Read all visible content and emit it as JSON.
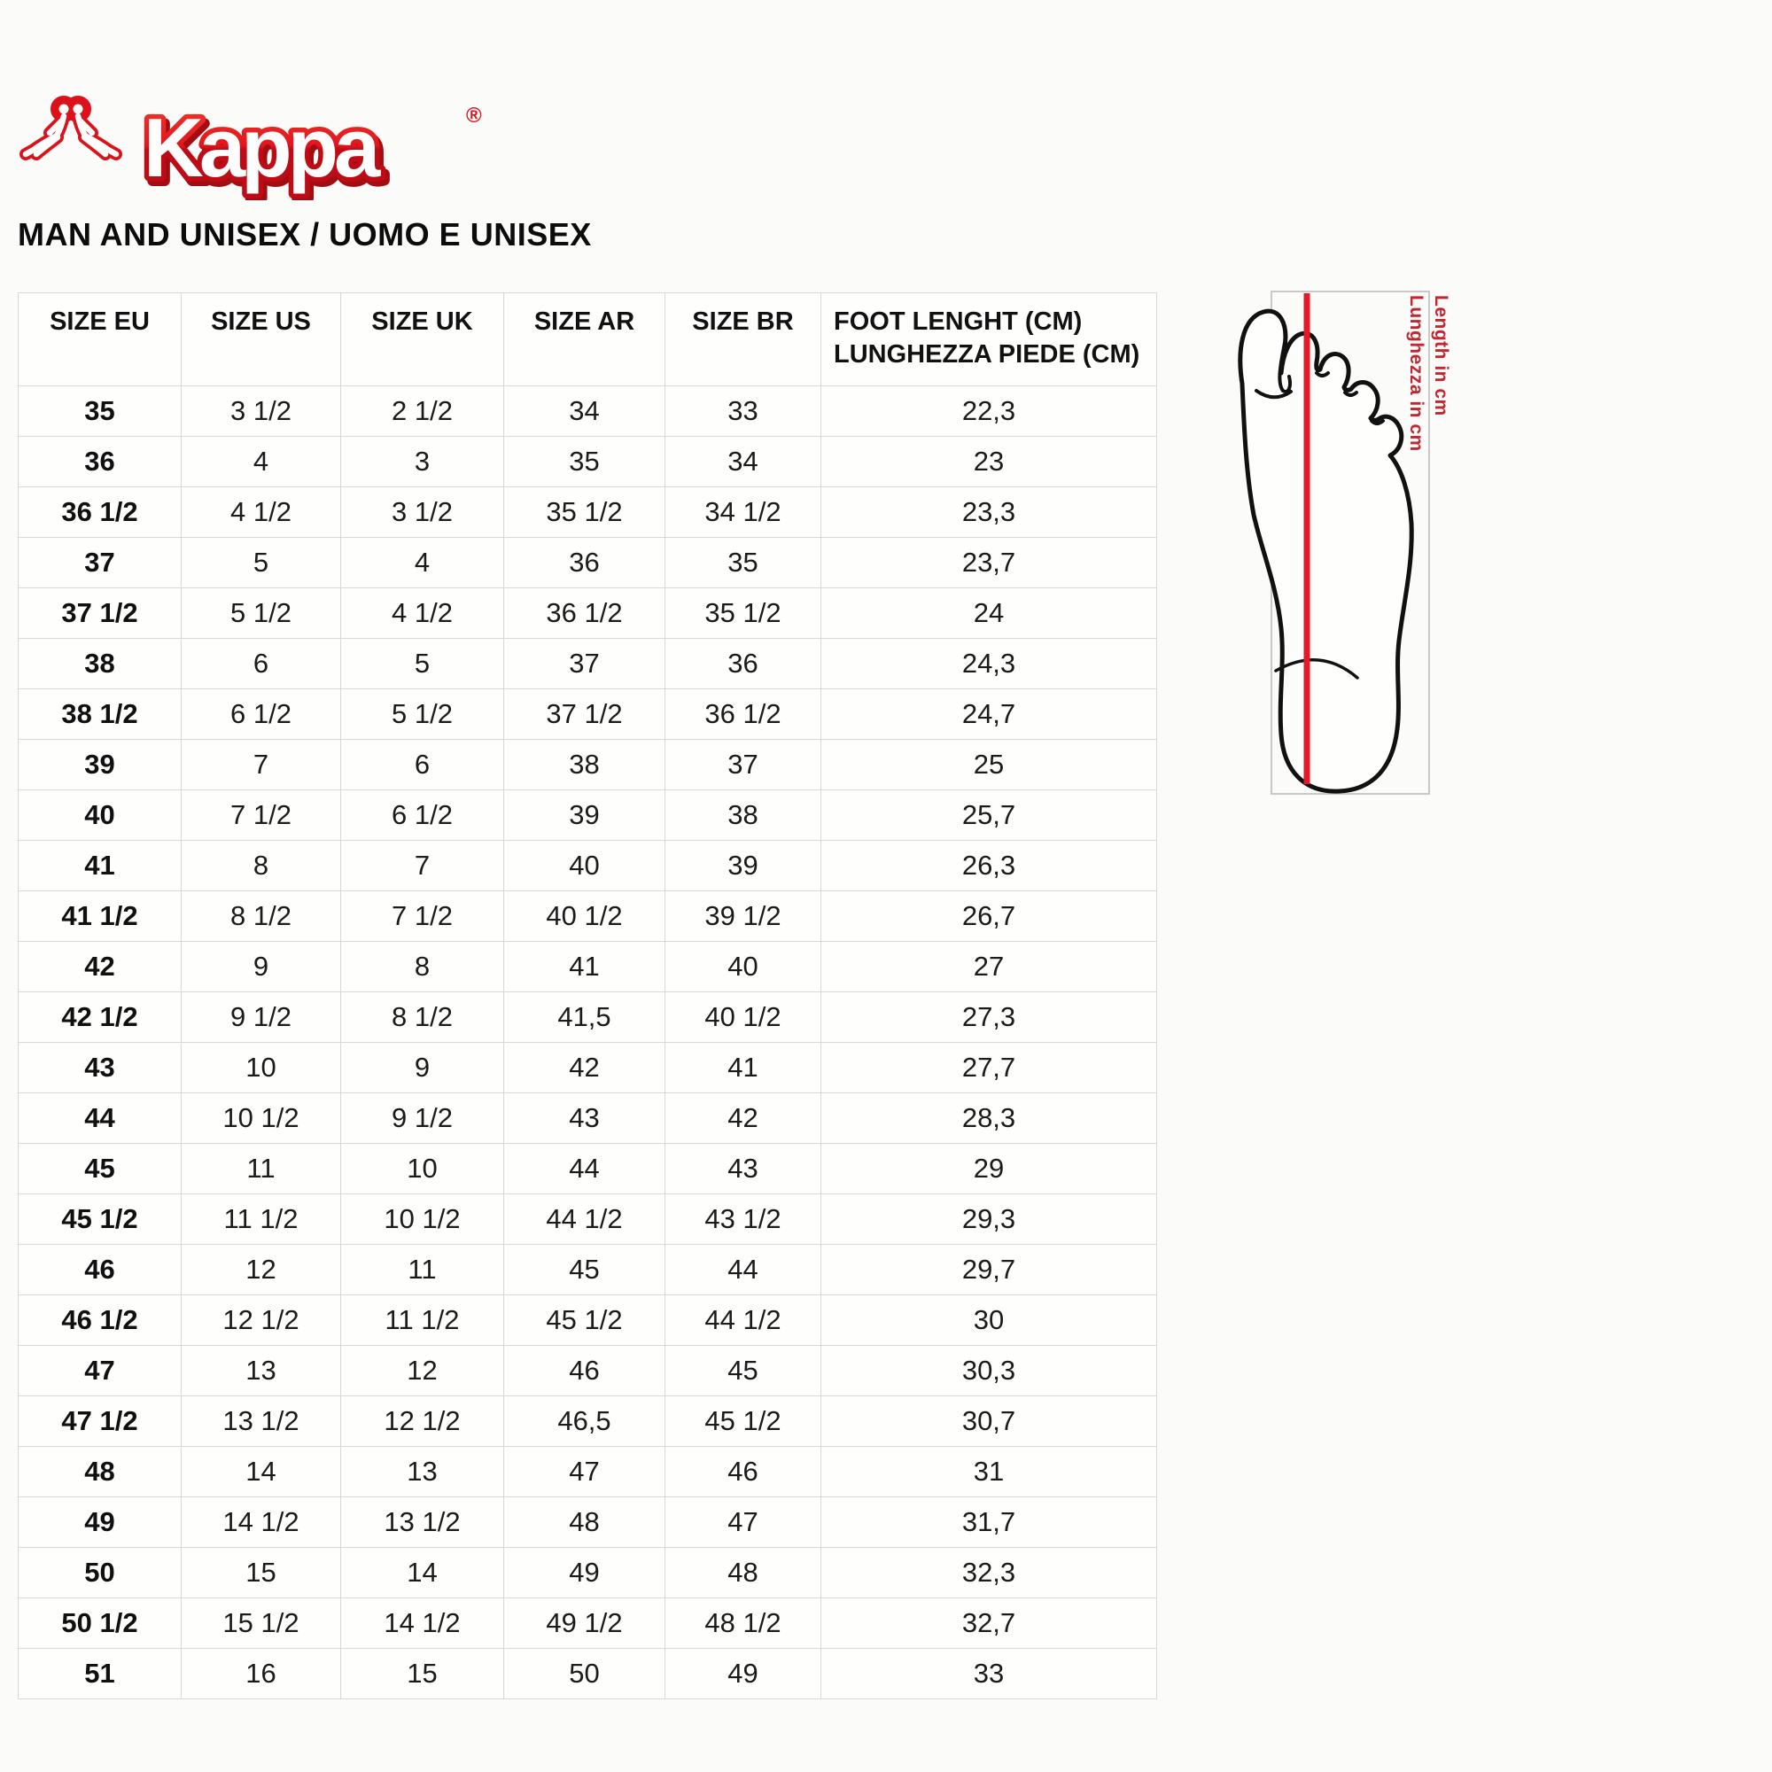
{
  "brand": {
    "name": "Kappa",
    "registered": "®"
  },
  "heading": "MAN AND UNISEX / UOMO E UNISEX",
  "size_table": {
    "headers": [
      "SIZE EU",
      "SIZE US",
      "SIZE UK",
      "SIZE AR",
      "SIZE BR"
    ],
    "foot_length_header_line1": "FOOT LENGHT (CM)",
    "foot_length_header_line2": "LUNGHEZZA PIEDE (CM)",
    "rows": [
      [
        "35",
        "3 1/2",
        "2 1/2",
        "34",
        "33",
        "22,3"
      ],
      [
        "36",
        "4",
        "3",
        "35",
        "34",
        "23"
      ],
      [
        "36 1/2",
        "4 1/2",
        "3 1/2",
        "35 1/2",
        "34 1/2",
        "23,3"
      ],
      [
        "37",
        "5",
        "4",
        "36",
        "35",
        "23,7"
      ],
      [
        "37 1/2",
        "5 1/2",
        "4 1/2",
        "36 1/2",
        "35 1/2",
        "24"
      ],
      [
        "38",
        "6",
        "5",
        "37",
        "36",
        "24,3"
      ],
      [
        "38 1/2",
        "6 1/2",
        "5 1/2",
        "37 1/2",
        "36 1/2",
        "24,7"
      ],
      [
        "39",
        "7",
        "6",
        "38",
        "37",
        "25"
      ],
      [
        "40",
        "7 1/2",
        "6 1/2",
        "39",
        "38",
        "25,7"
      ],
      [
        "41",
        "8",
        "7",
        "40",
        "39",
        "26,3"
      ],
      [
        "41 1/2",
        "8 1/2",
        "7 1/2",
        "40 1/2",
        "39 1/2",
        "26,7"
      ],
      [
        "42",
        "9",
        "8",
        "41",
        "40",
        "27"
      ],
      [
        "42 1/2",
        "9 1/2",
        "8 1/2",
        "41,5",
        "40 1/2",
        "27,3"
      ],
      [
        "43",
        "10",
        "9",
        "42",
        "41",
        "27,7"
      ],
      [
        "44",
        "10 1/2",
        "9 1/2",
        "43",
        "42",
        "28,3"
      ],
      [
        "45",
        "11",
        "10",
        "44",
        "43",
        "29"
      ],
      [
        "45 1/2",
        "11 1/2",
        "10 1/2",
        "44 1/2",
        "43 1/2",
        "29,3"
      ],
      [
        "46",
        "12",
        "11",
        "45",
        "44",
        "29,7"
      ],
      [
        "46 1/2",
        "12 1/2",
        "11 1/2",
        "45 1/2",
        "44 1/2",
        "30"
      ],
      [
        "47",
        "13",
        "12",
        "46",
        "45",
        "30,3"
      ],
      [
        "47 1/2",
        "13 1/2",
        "12 1/2",
        "46,5",
        "45 1/2",
        "30,7"
      ],
      [
        "48",
        "14",
        "13",
        "47",
        "46",
        "31"
      ],
      [
        "49",
        "14 1/2",
        "13 1/2",
        "48",
        "47",
        "31,7"
      ],
      [
        "50",
        "15",
        "14",
        "49",
        "48",
        "32,3"
      ],
      [
        "50 1/2",
        "15 1/2",
        "14 1/2",
        "49 1/2",
        "48 1/2",
        "32,7"
      ],
      [
        "51",
        "16",
        "15",
        "50",
        "49",
        "33"
      ]
    ]
  },
  "foot_diagram": {
    "label_en": "Length in cm",
    "label_it": "Lunghezza in cm"
  },
  "colors": {
    "brand_red_top": "#ee3a2e",
    "brand_red": "#e2161d",
    "brand_red_dark": "#bd0c16",
    "measure_line_red": "#e41a2b",
    "label_red": "#c32531",
    "grid_gray": "#d8d8d4",
    "diagram_box_gray": "#c9c9c6",
    "background": "#fbfbf9"
  }
}
